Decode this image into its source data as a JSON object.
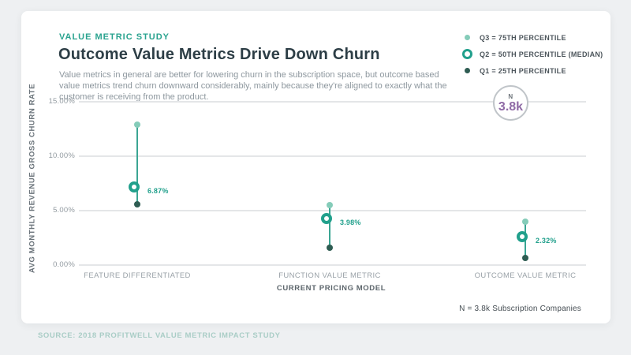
{
  "header": {
    "eyebrow": "VALUE METRIC STUDY",
    "title": "Outcome Value Metrics Drive Down Churn",
    "description": "Value metrics in general are better for lowering churn in the subscription space, but outcome based value metrics trend churn downward considerably, mainly because they're aligned to exactly what the customer is receiving from the product."
  },
  "legend": {
    "items": [
      {
        "label": "Q3 = 75TH PERCENTILE",
        "marker": "light-teal-dot"
      },
      {
        "label": "Q2 = 50TH PERCENTILE (MEDIAN)",
        "marker": "teal-ring"
      },
      {
        "label": "Q1 = 25TH PERCENTILE",
        "marker": "dark-teal-dot"
      }
    ]
  },
  "badge": {
    "label": "N",
    "value": "3.8k"
  },
  "chart_data": {
    "type": "scatter",
    "subtype": "percentile-range-dot-plot",
    "title": "Outcome Value Metrics Drive Down Churn",
    "xlabel": "CURRENT PRICING MODEL",
    "ylabel": "AVG MONTHLY REVENUE GROSS CHURN RATE",
    "ylim": [
      0,
      15
    ],
    "yticks": [
      0,
      5,
      10,
      15
    ],
    "ytick_labels": [
      "0.00%",
      "5.00%",
      "10.00%",
      "15.00%"
    ],
    "grid": true,
    "legend_position": "top-right",
    "categories": [
      "FEATURE DIFFERENTIATED",
      "FUNCTION VALUE METRIC",
      "OUTCOME VALUE METRIC"
    ],
    "series": [
      {
        "name": "Q3 = 75TH PERCENTILE",
        "values": [
          12.9,
          5.5,
          4.0
        ]
      },
      {
        "name": "Q2 = 50TH PERCENTILE (MEDIAN)",
        "values": [
          6.87,
          3.98,
          2.32
        ]
      },
      {
        "name": "Q1 = 25TH PERCENTILE",
        "values": [
          5.55,
          1.6,
          0.65
        ]
      }
    ],
    "point_labels": [
      "6.87%",
      "3.98%",
      "2.32%"
    ],
    "sample_size_note": "N = 3.8k Subscription Companies"
  },
  "footer": {
    "note": "N = 3.8k Subscription Companies",
    "source": "SOURCE: 2018 PROFITWELL VALUE METRIC IMPACT STUDY"
  },
  "colors": {
    "background": "#eef0f2",
    "card": "#ffffff",
    "accent_teal": "#21a08c",
    "range_line": "#3aa593",
    "q3_dot": "#85ccb9",
    "q1_dot": "#2e5c52",
    "value_purple": "#8f6aa5",
    "gridline": "#e4e6e8",
    "title_text": "#2d3e46",
    "source_text": "#a9cdc6"
  }
}
